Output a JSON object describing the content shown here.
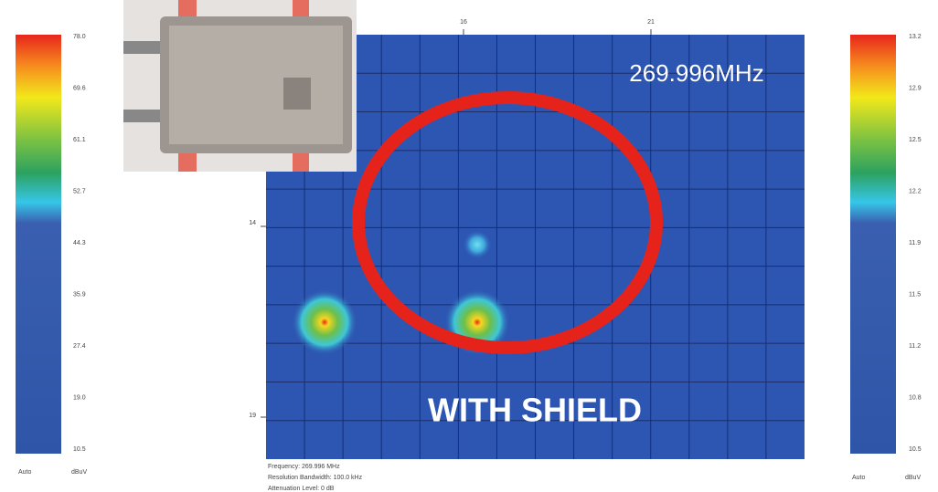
{
  "annotation_frequency": "269.996MHz",
  "annotation_shield": "WITH SHIELD",
  "left_scale": {
    "ticks": [
      "78.0",
      "69.6",
      "61.1",
      "52.7",
      "44.3",
      "35.9",
      "27.4",
      "19.0",
      "10.5"
    ],
    "mode": "Auto",
    "unit": "dBuV"
  },
  "right_scale": {
    "ticks": [
      "13.2",
      "12.9",
      "12.5",
      "12.2",
      "11.9",
      "11.5",
      "11.2",
      "10.8",
      "10.5"
    ],
    "mode": "Auto",
    "unit": "dBuV"
  },
  "x_axis": {
    "ticks": [
      "16",
      "21"
    ]
  },
  "y_axis": {
    "ticks": [
      "14",
      "19"
    ]
  },
  "footer": [
    "Frequency: 269.996 MHz",
    "Resolution Bandwidth: 100.0 kHz",
    "Attenuation Level: 0 dB"
  ]
}
